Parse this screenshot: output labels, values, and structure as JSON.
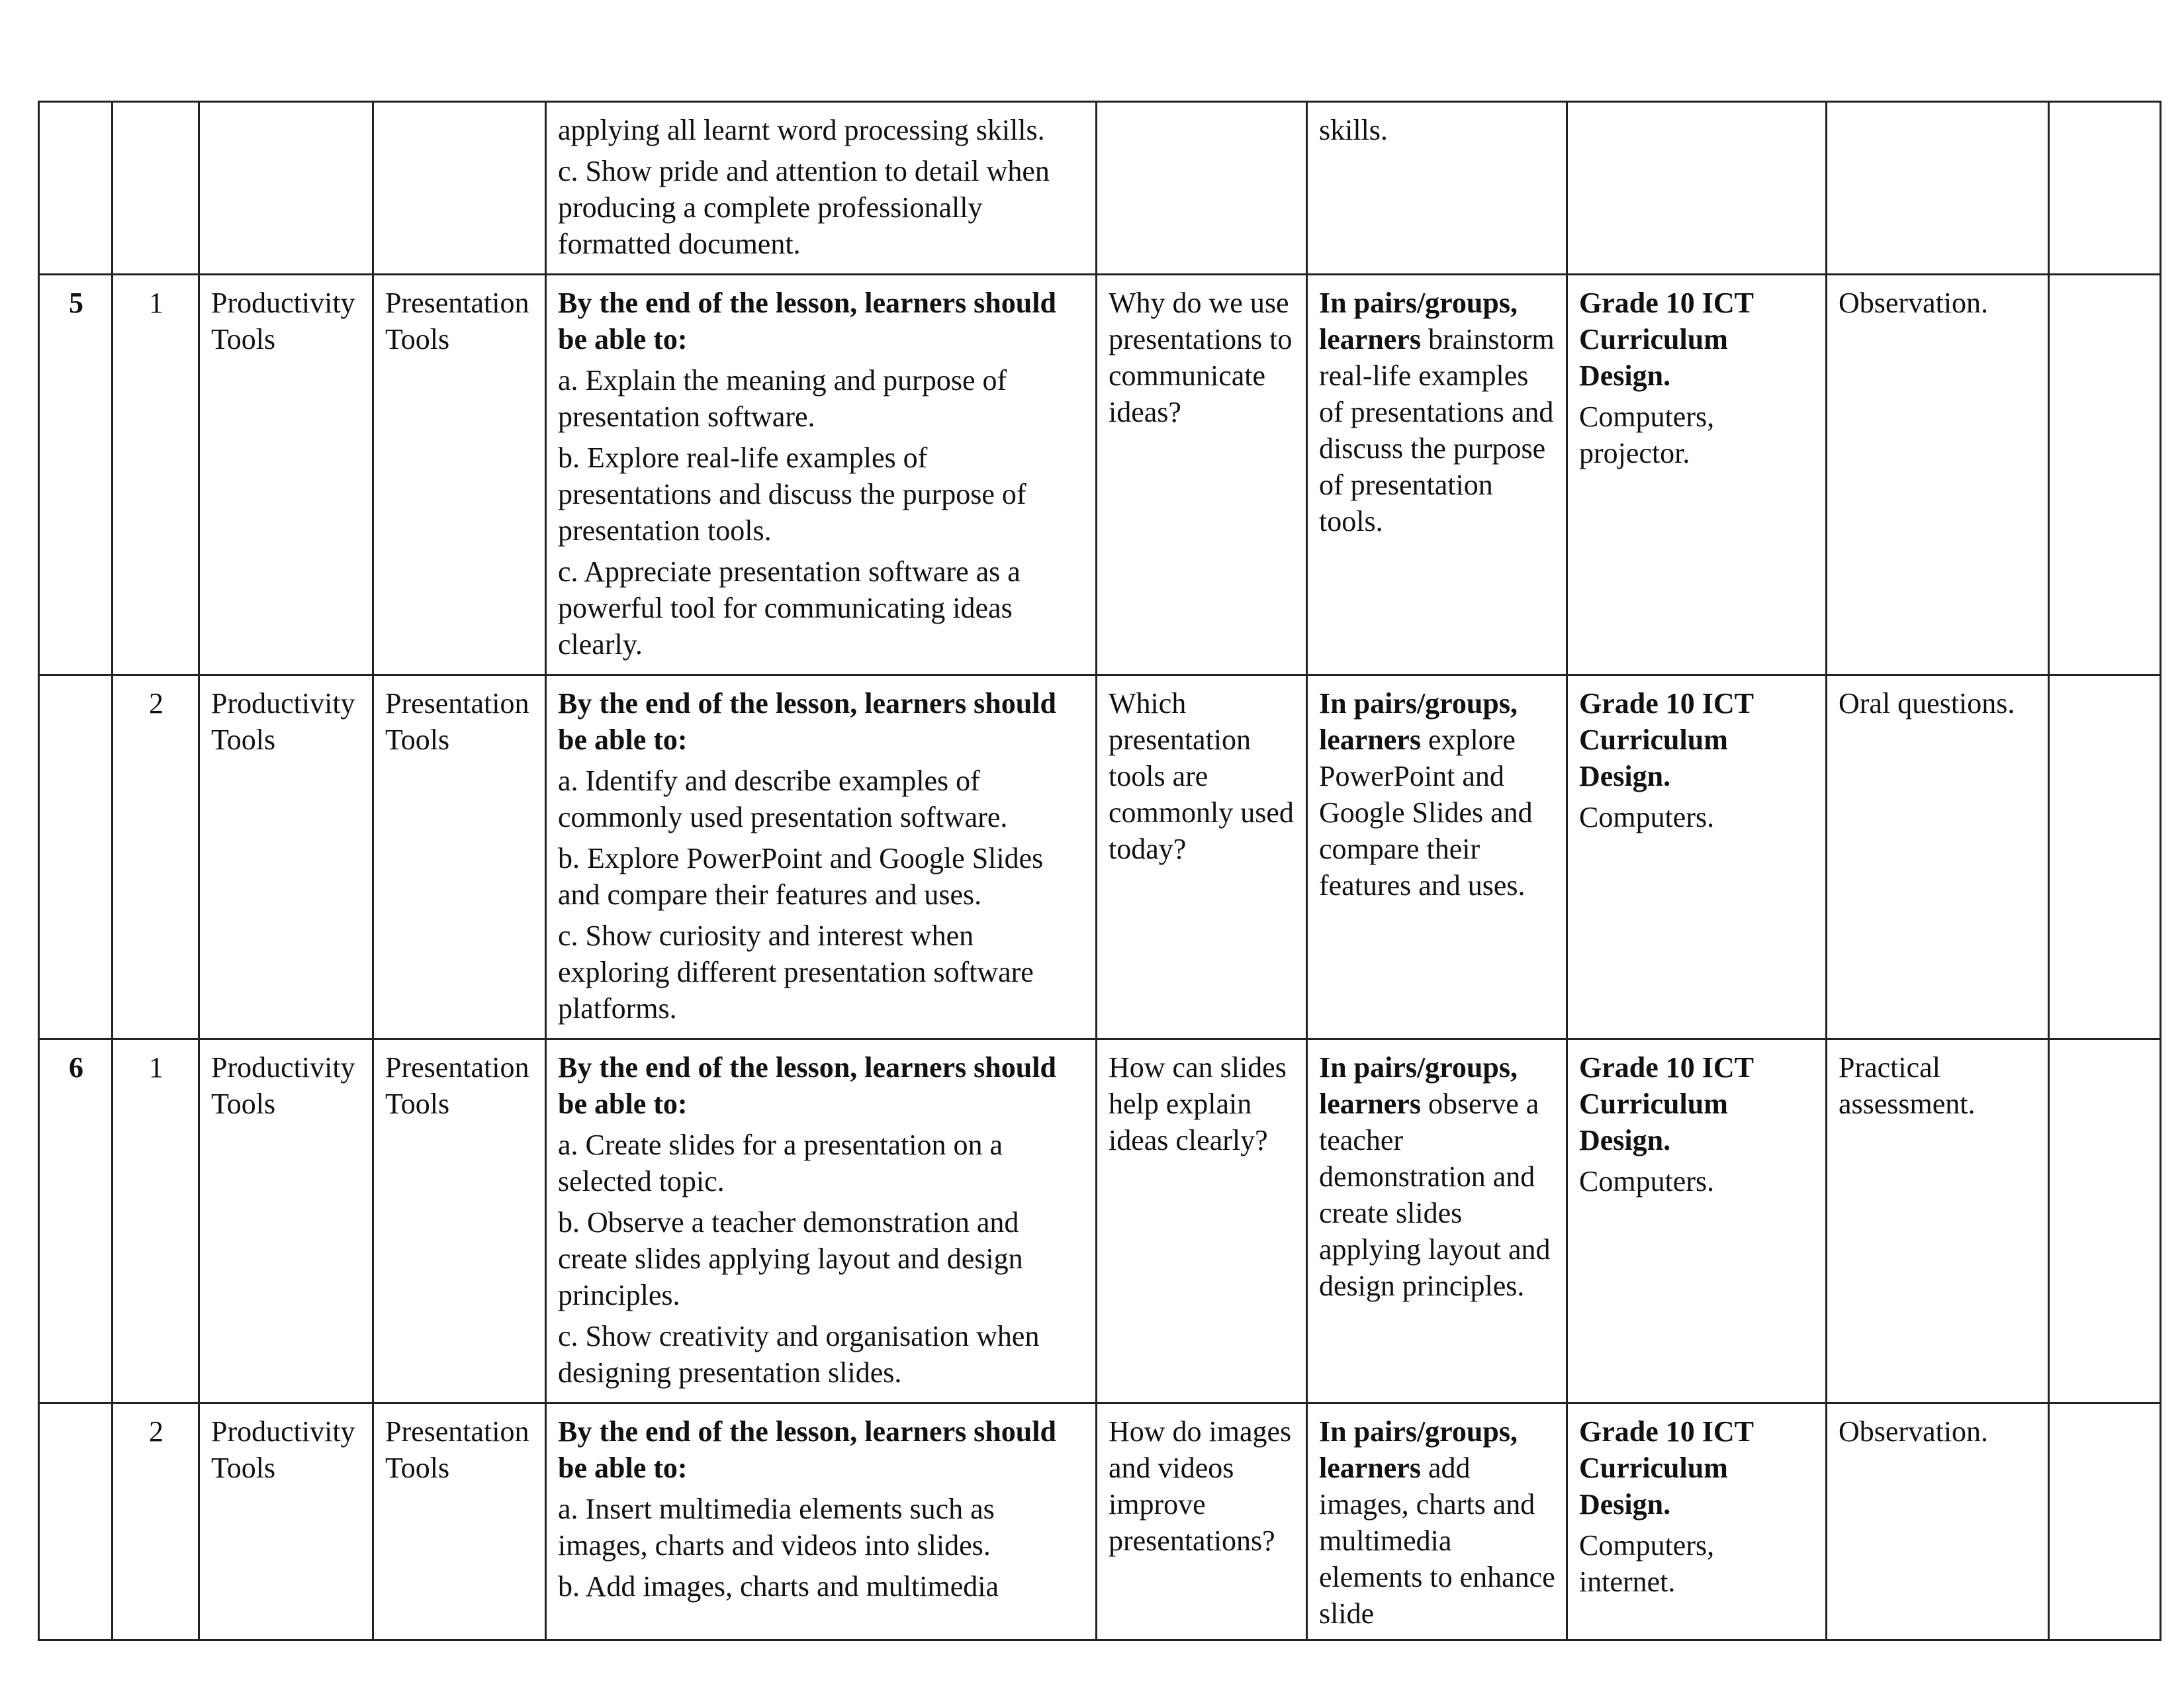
{
  "rows": [
    {
      "week": "",
      "lesson": "",
      "strand": "",
      "sub_strand": "",
      "outcomes": {
        "heading": "",
        "items": [
          "applying all learnt word processing skills.",
          "c. Show pride and attention to detail when producing a complete professionally formatted document."
        ]
      },
      "inquiry": "",
      "experiences": {
        "bold": "",
        "text": "skills."
      },
      "resources": {
        "bold": "",
        "text": ""
      },
      "assessment": "",
      "remarks": ""
    },
    {
      "week": "5",
      "lesson": "1",
      "strand": "Productivity Tools",
      "sub_strand": "Presentation Tools",
      "outcomes": {
        "heading": "By the end of the lesson, learners should be able to:",
        "items": [
          "a. Explain the meaning and purpose of presentation software.",
          "b. Explore   real-life examples of presentations and discuss the purpose of presentation tools.",
          "c. Appreciate presentation software as a powerful tool for communicating ideas clearly."
        ]
      },
      "inquiry": "Why do we use presentations to communicate ideas?",
      "experiences": {
        "bold": "In pairs/groups, learners",
        "text": "brainstorm real-life examples of presentations and discuss the purpose of presentation tools."
      },
      "resources": {
        "bold": "Grade 10 ICT Curriculum Design.",
        "text": "Computers, projector."
      },
      "assessment": "Observation.",
      "remarks": ""
    },
    {
      "week": "",
      "lesson": "2",
      "strand": "Productivity Tools",
      "sub_strand": "Presentation Tools",
      "outcomes": {
        "heading": "By the end of the lesson, learners should be able to:",
        "items": [
          "a. Identify and describe examples of commonly used presentation software.",
          "b. Explore PowerPoint and Google Slides and compare their features and uses.",
          "c. Show curiosity and interest when exploring different presentation software platforms."
        ]
      },
      "inquiry": "Which presentation tools are commonly used today?",
      "experiences": {
        "bold": "In pairs/groups, learners",
        "text": "explore PowerPoint and Google Slides and compare their features and uses."
      },
      "resources": {
        "bold": "Grade 10 ICT Curriculum Design.",
        "text": "Computers."
      },
      "assessment": "Oral questions.",
      "remarks": ""
    },
    {
      "week": "6",
      "lesson": "1",
      "strand": "Productivity Tools",
      "sub_strand": "Presentation Tools",
      "outcomes": {
        "heading": "By the end of the lesson, learners should be able to:",
        "items": [
          "a. Create slides for a presentation on a selected topic.",
          "b. Observe a teacher demonstration and create slides applying layout and design principles.",
          "c. Show creativity and organisation when designing presentation slides."
        ]
      },
      "inquiry": "How can slides help explain ideas clearly?",
      "experiences": {
        "bold": "In pairs/groups, learners",
        "text": "observe a teacher demonstration and create slides applying layout and design principles."
      },
      "resources": {
        "bold": "Grade 10 ICT Curriculum Design.",
        "text": "Computers."
      },
      "assessment": "Practical assessment.",
      "remarks": ""
    },
    {
      "week": "",
      "lesson": "2",
      "strand": "Productivity Tools",
      "sub_strand": "Presentation Tools",
      "outcomes": {
        "heading": "By the end of the lesson, learners should be able to:",
        "items": [
          "a. Insert multimedia elements such as images, charts and videos into slides.",
          "b. Add images, charts and multimedia"
        ]
      },
      "inquiry": "How do images and videos improve presentations?",
      "experiences": {
        "bold": "In pairs/groups, learners",
        "text": "add images, charts and multimedia elements to enhance slide"
      },
      "resources": {
        "bold": "Grade 10 ICT Curriculum Design.",
        "text": "Computers, internet."
      },
      "assessment": "Observation.",
      "remarks": ""
    }
  ]
}
